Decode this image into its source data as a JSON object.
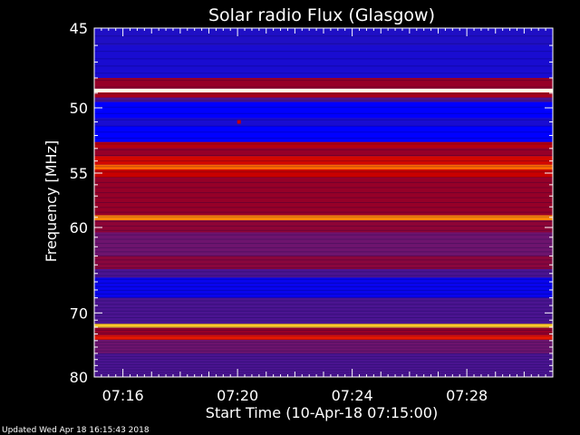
{
  "chart_data": {
    "type": "heatmap",
    "title": "Solar radio Flux (Glasgow)",
    "xlabel": "Start Time (10-Apr-18 07:15:00)",
    "ylabel": "Frequency [MHz]",
    "x_range_minutes": [
      0,
      16
    ],
    "y_range_mhz": [
      45,
      80
    ],
    "x_tick_labels": [
      "07:16",
      "07:20",
      "07:24",
      "07:28"
    ],
    "x_tick_values_minutes": [
      1,
      5,
      9,
      13
    ],
    "y_tick_labels": [
      "45",
      "50",
      "55",
      "60",
      "70",
      "80"
    ],
    "y_tick_values_mhz": [
      45,
      50,
      55,
      60,
      70,
      80
    ],
    "y_scale": "reciprocal",
    "colormap": "blue-red-yellow-white",
    "frequency_bands": [
      {
        "from_mhz": 45.0,
        "to_mhz": 46.0,
        "intensity": 0.22
      },
      {
        "from_mhz": 46.0,
        "to_mhz": 48.0,
        "intensity": 0.2
      },
      {
        "from_mhz": 48.0,
        "to_mhz": 48.7,
        "intensity": 0.45
      },
      {
        "from_mhz": 48.7,
        "to_mhz": 48.95,
        "intensity": 1.0
      },
      {
        "from_mhz": 48.95,
        "to_mhz": 49.3,
        "intensity": 0.5
      },
      {
        "from_mhz": 49.3,
        "to_mhz": 49.6,
        "intensity": 0.3
      },
      {
        "from_mhz": 49.6,
        "to_mhz": 50.7,
        "intensity": 0.12
      },
      {
        "from_mhz": 50.7,
        "to_mhz": 51.3,
        "intensity": 0.2
      },
      {
        "from_mhz": 51.3,
        "to_mhz": 52.5,
        "intensity": 0.12
      },
      {
        "from_mhz": 52.5,
        "to_mhz": 53.0,
        "intensity": 0.55
      },
      {
        "from_mhz": 53.0,
        "to_mhz": 53.6,
        "intensity": 0.45
      },
      {
        "from_mhz": 53.6,
        "to_mhz": 54.3,
        "intensity": 0.62
      },
      {
        "from_mhz": 54.3,
        "to_mhz": 54.7,
        "intensity": 0.78
      },
      {
        "from_mhz": 54.7,
        "to_mhz": 55.4,
        "intensity": 0.6
      },
      {
        "from_mhz": 55.4,
        "to_mhz": 58.8,
        "intensity": 0.45
      },
      {
        "from_mhz": 58.8,
        "to_mhz": 59.3,
        "intensity": 0.82
      },
      {
        "from_mhz": 59.3,
        "to_mhz": 60.5,
        "intensity": 0.43
      },
      {
        "from_mhz": 60.5,
        "to_mhz": 63.0,
        "intensity": 0.35
      },
      {
        "from_mhz": 63.0,
        "to_mhz": 64.5,
        "intensity": 0.42
      },
      {
        "from_mhz": 64.5,
        "to_mhz": 65.5,
        "intensity": 0.3
      },
      {
        "from_mhz": 65.5,
        "to_mhz": 68.0,
        "intensity": 0.15
      },
      {
        "from_mhz": 68.0,
        "to_mhz": 71.5,
        "intensity": 0.3
      },
      {
        "from_mhz": 71.5,
        "to_mhz": 72.1,
        "intensity": 0.9
      },
      {
        "from_mhz": 72.1,
        "to_mhz": 73.2,
        "intensity": 0.45
      },
      {
        "from_mhz": 73.2,
        "to_mhz": 73.9,
        "intensity": 0.66
      },
      {
        "from_mhz": 73.9,
        "to_mhz": 76.0,
        "intensity": 0.35
      },
      {
        "from_mhz": 76.0,
        "to_mhz": 80.0,
        "intensity": 0.3
      }
    ],
    "point_marks": [
      {
        "x_minutes": 5.05,
        "y_mhz": 51.0,
        "intensity": 0.6
      }
    ],
    "grid": false,
    "legend": "none"
  },
  "footer": {
    "updated": "Updated Wed Apr 18 16:15:43 2018"
  },
  "colors": {
    "background": "#000000",
    "text": "#ffffff",
    "axis": "#ffffff"
  }
}
